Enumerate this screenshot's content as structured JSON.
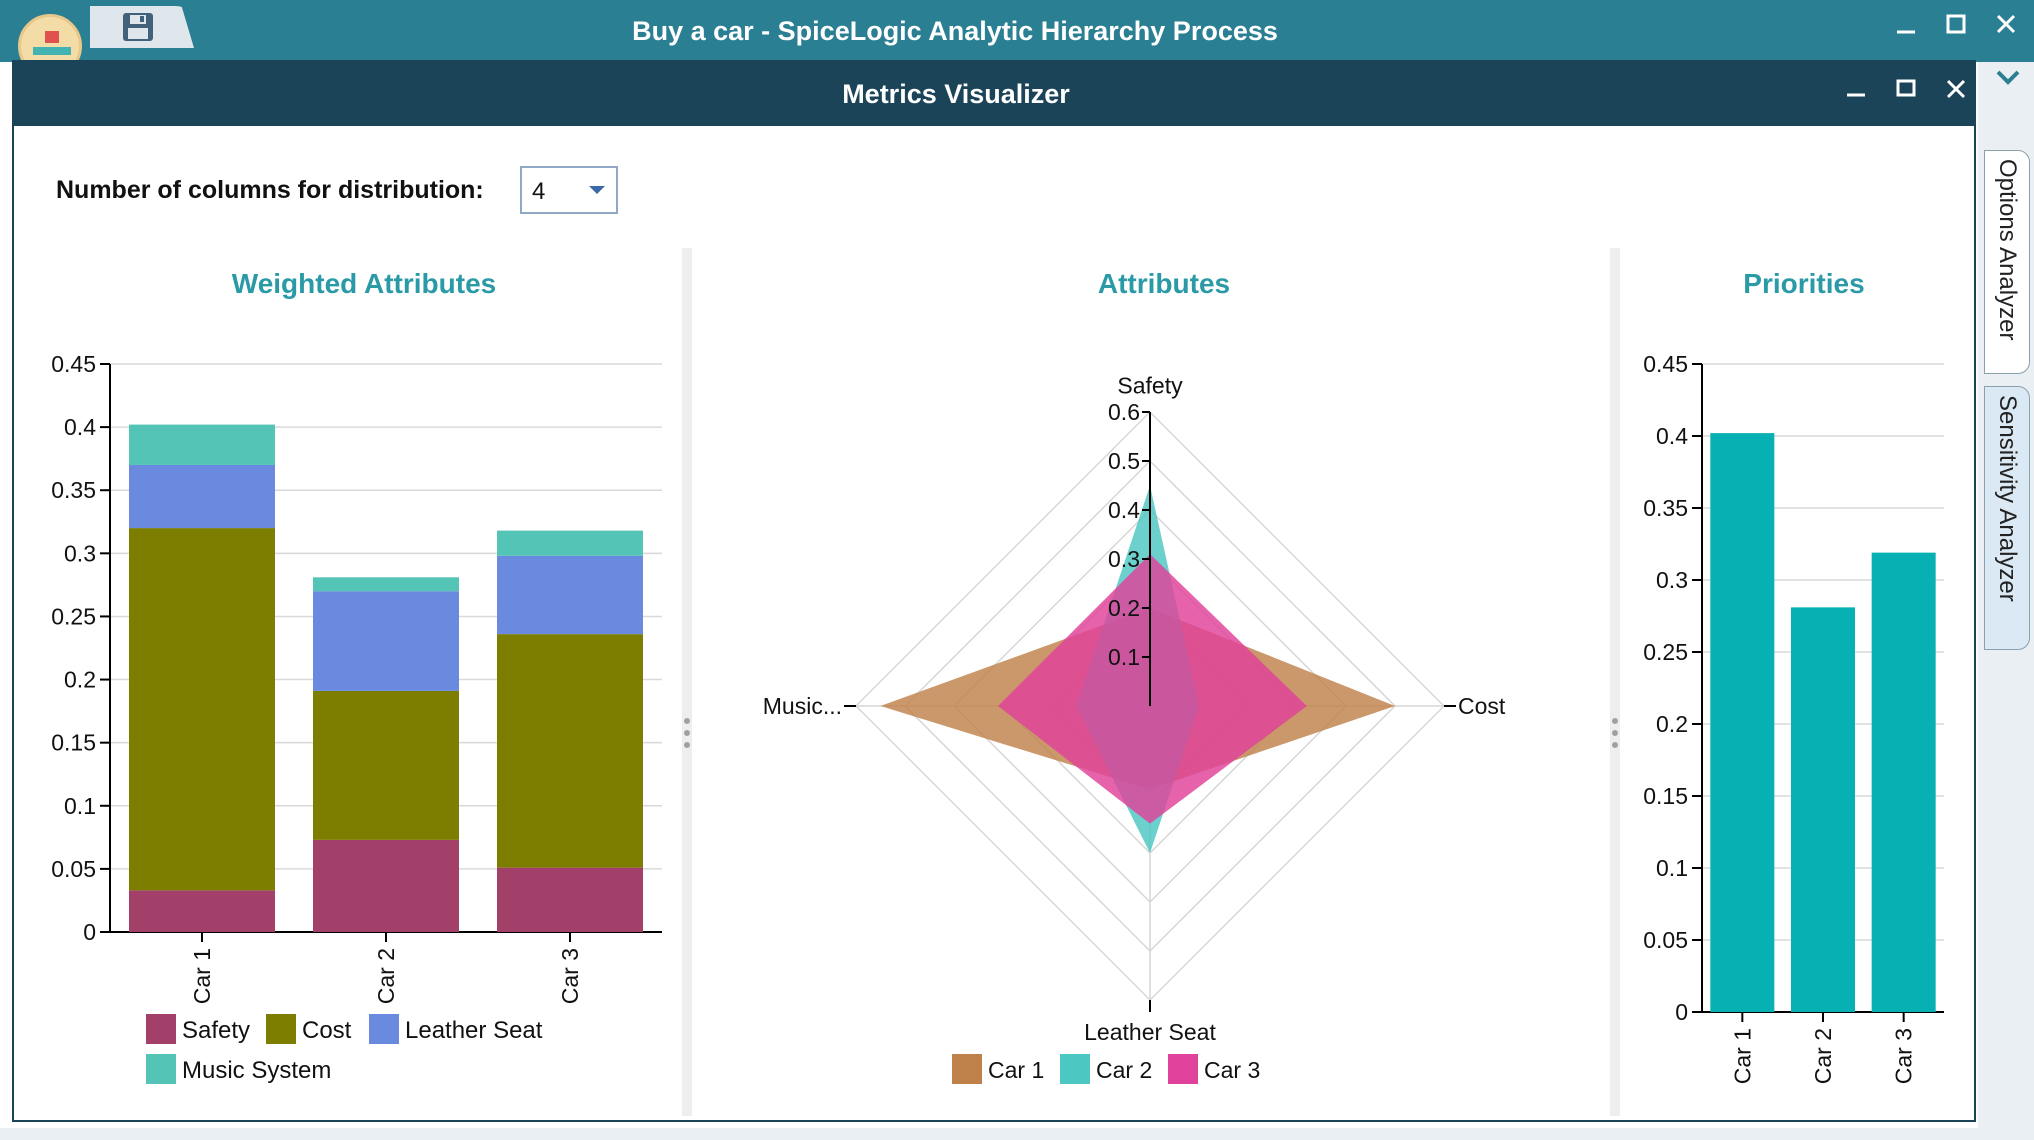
{
  "app": {
    "title": "Buy a car - SpiceLogic Analytic Hierarchy Process",
    "side_tabs": [
      "Options Analyzer",
      "Sensitivity Analyzer"
    ]
  },
  "dialog": {
    "title": "Metrics Visualizer",
    "columns_label": "Number of columns for distribution:",
    "columns_value": "4"
  },
  "colors": {
    "safety": "#a3406a",
    "cost": "#7d7d00",
    "leather_seat": "#6a8ae0",
    "music_system": "#54c4b6",
    "car1": "#bf814a",
    "car2": "#4cc7c2",
    "car3": "#e0419a",
    "priority": "#06b0b3",
    "title_accent": "#2a9aa6"
  },
  "chart_data": [
    {
      "type": "bar",
      "stacked": true,
      "title": "Weighted Attributes",
      "categories": [
        "Car 1",
        "Car 2",
        "Car 3"
      ],
      "series": [
        {
          "name": "Safety",
          "values": [
            0.033,
            0.073,
            0.051
          ]
        },
        {
          "name": "Cost",
          "values": [
            0.287,
            0.118,
            0.185
          ]
        },
        {
          "name": "Leather Seat",
          "values": [
            0.05,
            0.079,
            0.062
          ]
        },
        {
          "name": "Music System",
          "values": [
            0.032,
            0.011,
            0.02
          ]
        }
      ],
      "ylim": [
        0,
        0.45
      ],
      "yticks": [
        "0",
        "0.05",
        "0.1",
        "0.15",
        "0.2",
        "0.25",
        "0.3",
        "0.35",
        "0.4",
        "0.45"
      ],
      "grid": true,
      "legend": "bottom"
    },
    {
      "type": "radar",
      "title": "Attributes",
      "axes": [
        "Safety",
        "Cost",
        "Leather Seat",
        "Music..."
      ],
      "series": [
        {
          "name": "Car 1",
          "values": [
            0.2,
            0.5,
            0.17,
            0.55
          ]
        },
        {
          "name": "Car 2",
          "values": [
            0.45,
            0.1,
            0.3,
            0.15
          ]
        },
        {
          "name": "Car 3",
          "values": [
            0.31,
            0.32,
            0.24,
            0.31
          ]
        }
      ],
      "rlim": [
        0,
        0.6
      ],
      "rticks": [
        "0.1",
        "0.2",
        "0.3",
        "0.4",
        "0.5",
        "0.6"
      ],
      "legend": "bottom"
    },
    {
      "type": "bar",
      "title": "Priorities",
      "categories": [
        "Car 1",
        "Car 2",
        "Car 3"
      ],
      "values": [
        0.402,
        0.281,
        0.319
      ],
      "ylim": [
        0,
        0.45
      ],
      "yticks": [
        "0",
        "0.05",
        "0.1",
        "0.15",
        "0.2",
        "0.25",
        "0.3",
        "0.35",
        "0.4",
        "0.45"
      ],
      "grid": true
    }
  ]
}
